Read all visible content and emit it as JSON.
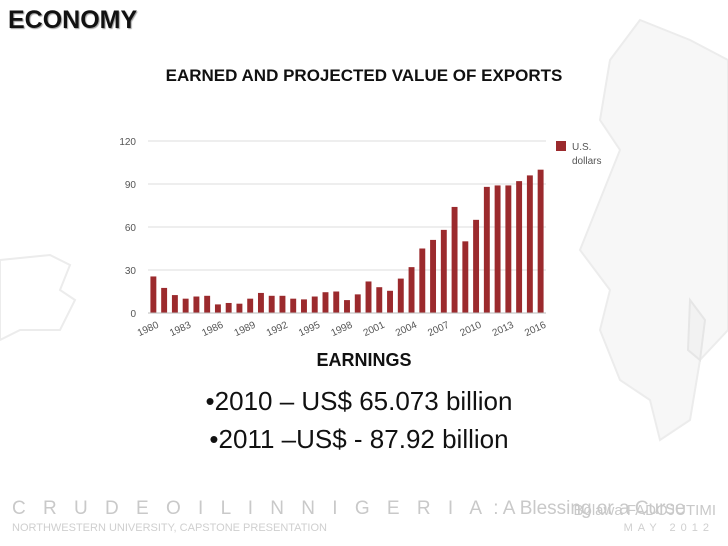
{
  "slide": {
    "title": "ECONOMY",
    "chart_title": "EARNED AND PROJECTED VALUE OF EXPORTS",
    "earnings_heading": "EARNINGS",
    "earnings": [
      "•2010 – US$ 65.073 billion",
      "•2011 –US$ - 87.92 billion"
    ],
    "footer": {
      "title_spaced": "C R U D E   O I L   I N   N I G E R I A",
      "title_rest": " : A Blessing or a Curse",
      "subtitle": "NORTHWESTERN UNIVERSITY, CAPSTONE PRESENTATION",
      "author": "Bolawa FADOJUTIMI",
      "date": "MAY 2012"
    }
  },
  "colors": {
    "bar": "#9b2a2d",
    "grid": "#dddddd",
    "axis_text": "#555555"
  },
  "chart_data": {
    "type": "bar",
    "title": "EARNED AND PROJECTED VALUE OF EXPORTS",
    "xlabel": "",
    "ylabel": "",
    "ylim": [
      0,
      120
    ],
    "yticks": [
      0,
      30,
      60,
      90,
      120
    ],
    "grid": true,
    "legend_position": "top-right",
    "categories": [
      1980,
      1981,
      1982,
      1983,
      1984,
      1985,
      1986,
      1987,
      1988,
      1989,
      1990,
      1991,
      1992,
      1993,
      1994,
      1995,
      1996,
      1997,
      1998,
      1999,
      2000,
      2001,
      2002,
      2003,
      2004,
      2005,
      2006,
      2007,
      2008,
      2009,
      2010,
      2011,
      2012,
      2013,
      2014,
      2015,
      2016
    ],
    "tick_labels": [
      "1980",
      "1983",
      "1986",
      "1989",
      "1992",
      "1995",
      "1998",
      "2001",
      "2004",
      "2007",
      "2010",
      "2013",
      "2016"
    ],
    "series": [
      {
        "name": "U.S. dollars",
        "values": [
          25.5,
          17.5,
          12.5,
          10,
          11.5,
          12,
          6,
          7,
          6.5,
          10,
          14,
          12,
          12,
          10,
          9.5,
          11.5,
          14.5,
          15,
          9,
          13,
          22,
          18,
          15.5,
          24,
          32,
          45,
          51,
          58,
          74,
          50,
          65,
          88,
          89,
          89,
          92,
          96,
          100
        ]
      }
    ]
  }
}
